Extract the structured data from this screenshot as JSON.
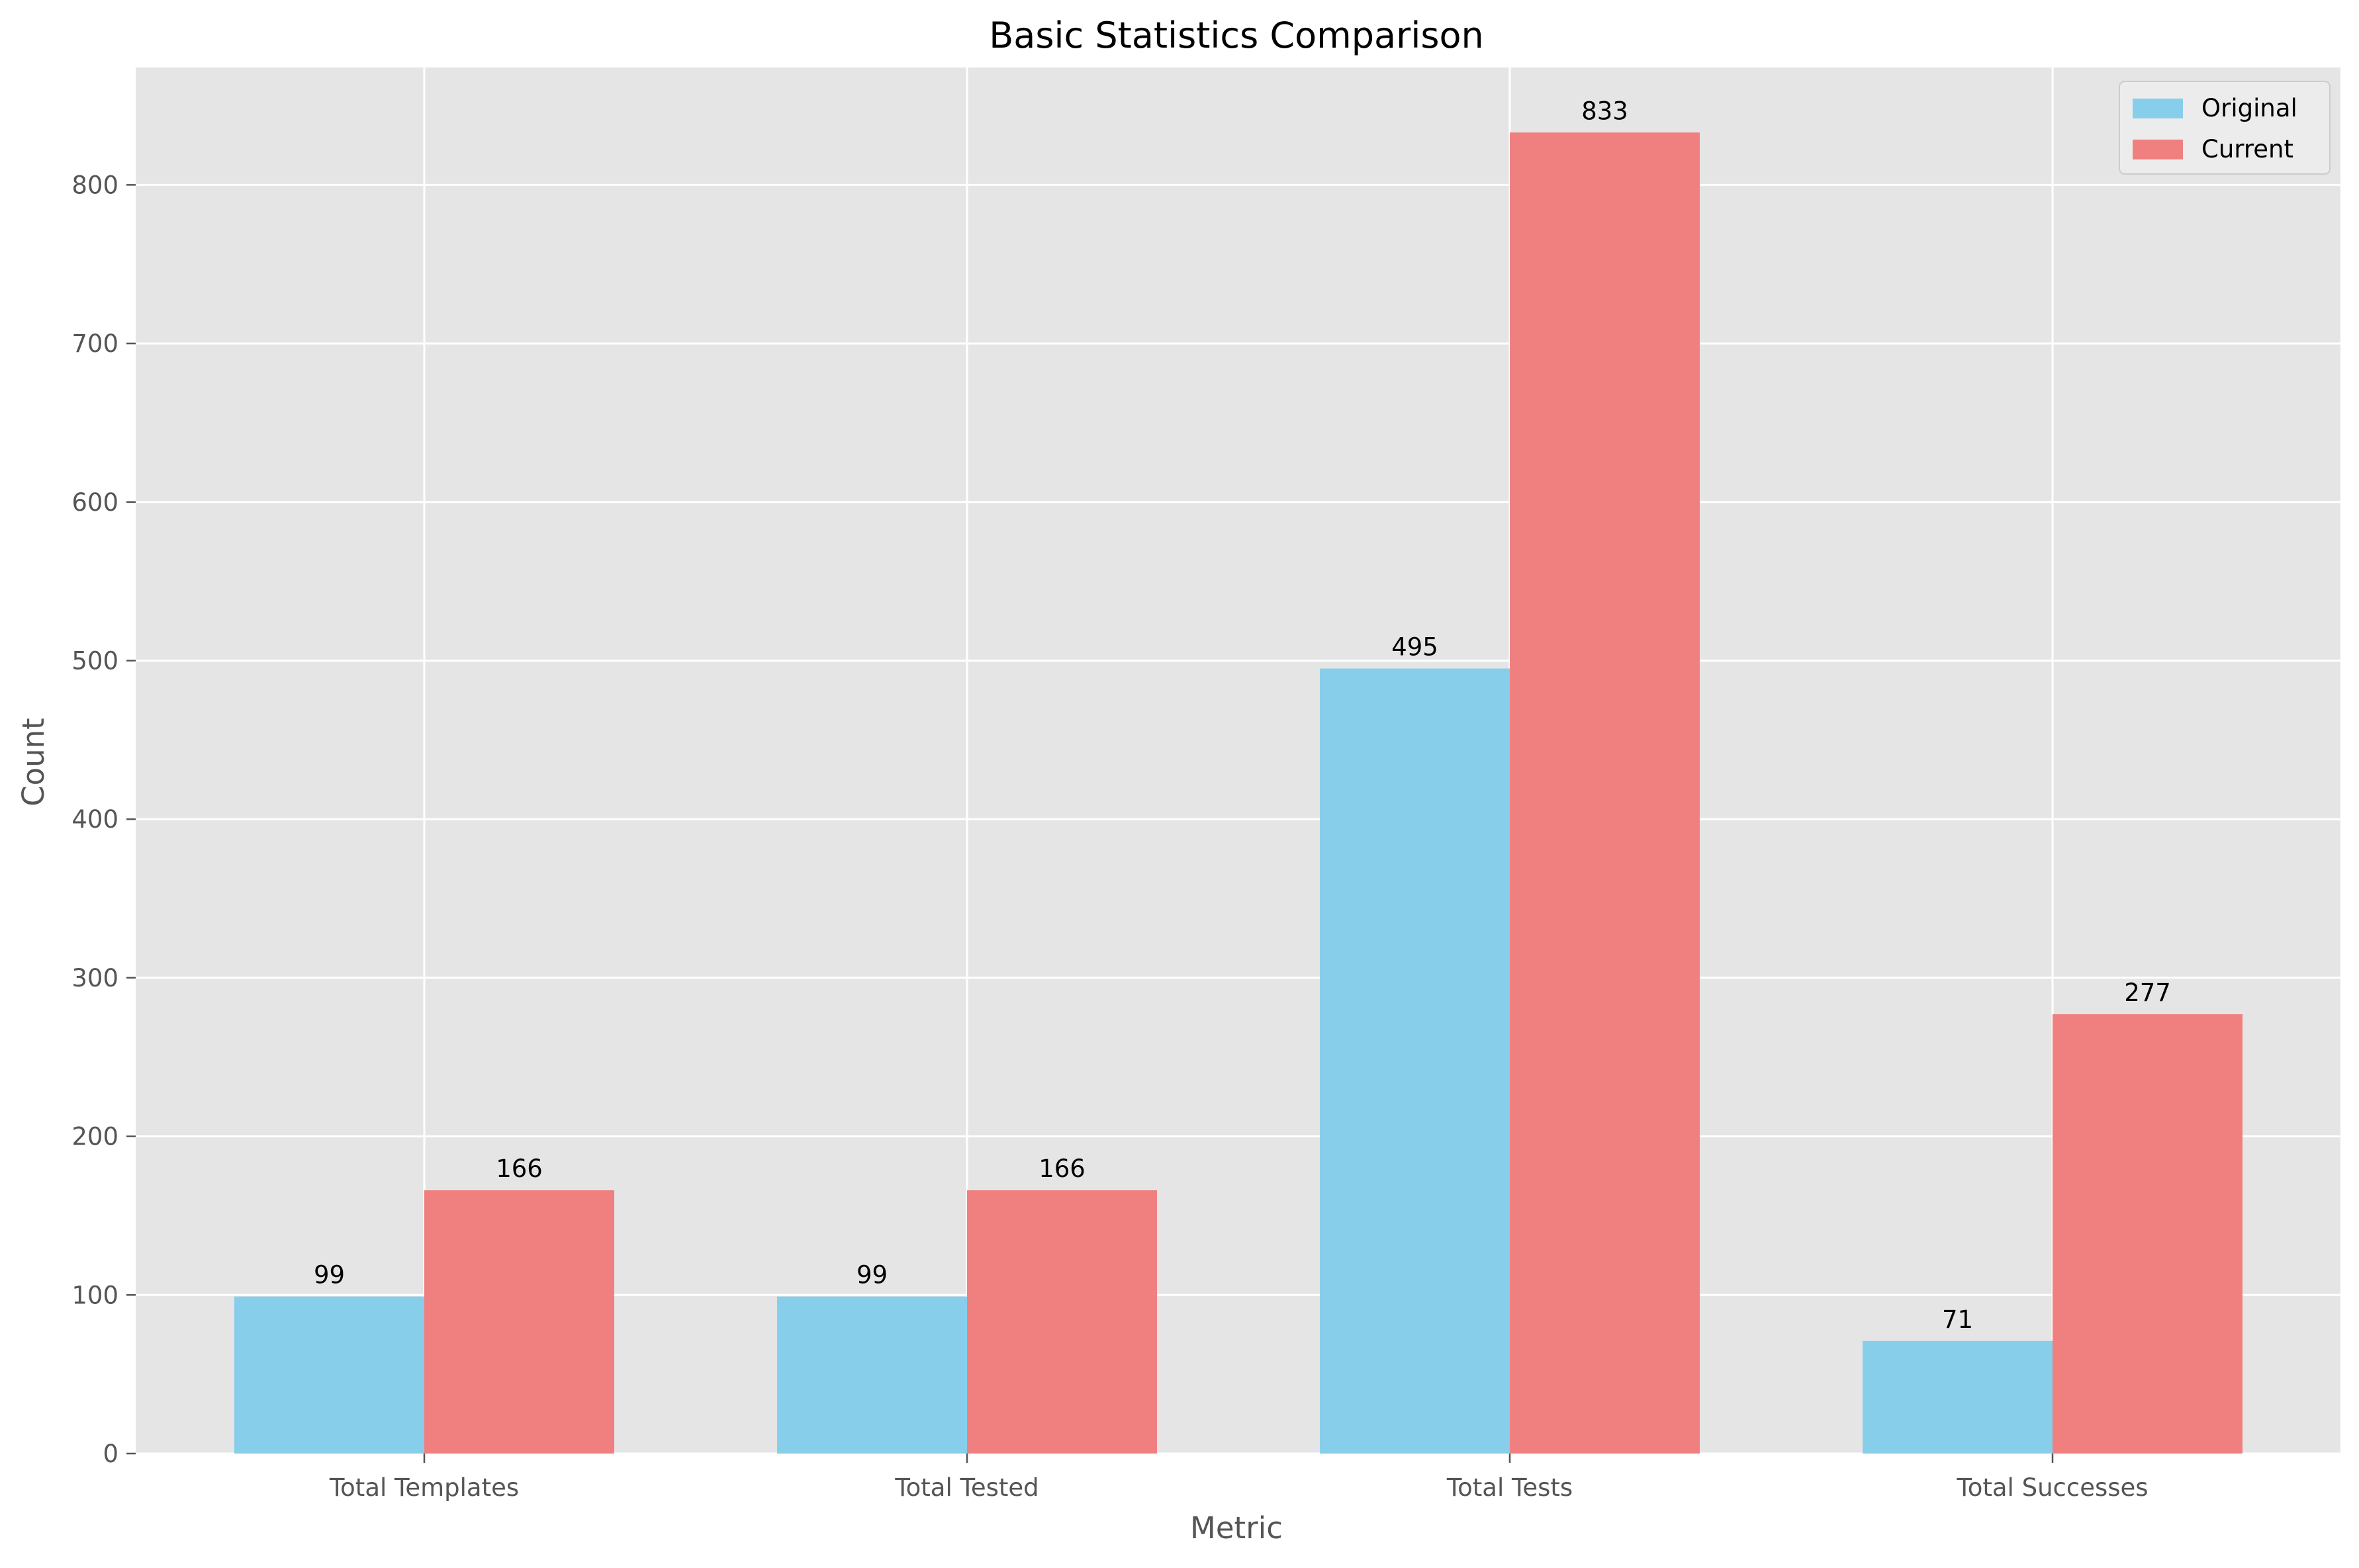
{
  "chart_data": {
    "type": "bar",
    "title": "Basic Statistics Comparison",
    "xlabel": "Metric",
    "ylabel": "Count",
    "categories": [
      "Total Templates",
      "Total Tested",
      "Total Tests",
      "Total Successes"
    ],
    "series": [
      {
        "name": "Original",
        "values": [
          99,
          99,
          495,
          71
        ],
        "color": "#87CEEB"
      },
      {
        "name": "Current",
        "values": [
          166,
          166,
          833,
          277
        ],
        "color": "#F08080"
      }
    ],
    "ylim": [
      0,
      874
    ],
    "yticks": [
      0,
      100,
      200,
      300,
      400,
      500,
      600,
      700,
      800
    ],
    "grid": true,
    "legend_position": "top-right",
    "plot_background": "#E5E5E5"
  }
}
